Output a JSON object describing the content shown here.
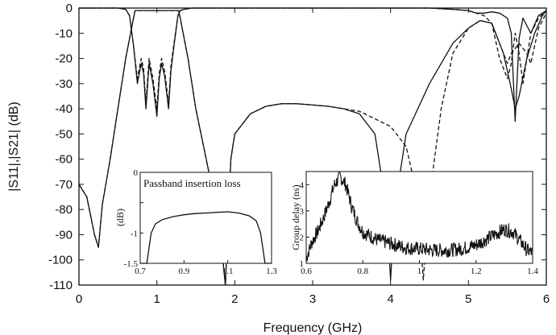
{
  "chart_data": [
    {
      "type": "line",
      "xlabel": "Frequency (GHz)",
      "ylabel": "|S11|,|S21| (dB)",
      "xlim": [
        0,
        6
      ],
      "ylim": [
        -110,
        0
      ],
      "xticks": [
        0,
        1,
        2,
        3,
        4,
        5,
        6
      ],
      "yticks": [
        0,
        -10,
        -20,
        -30,
        -40,
        -50,
        -60,
        -70,
        -80,
        -90,
        -100,
        -110
      ],
      "grid": false,
      "legend": "none",
      "series": [
        {
          "style": "solid",
          "x": [
            0,
            0.1,
            0.2,
            0.25,
            0.3,
            0.4,
            0.5,
            0.6,
            0.7,
            0.72,
            1.28,
            1.3,
            1.4,
            1.5,
            1.6,
            1.7,
            1.8,
            1.88,
            1.95,
            2.0,
            2.2,
            2.4,
            2.6,
            2.8,
            3.0,
            3.2,
            3.4,
            3.6,
            3.8,
            3.95,
            4.0,
            4.05,
            4.2,
            4.5,
            4.8,
            5.0,
            5.15,
            5.3,
            5.45,
            5.55,
            5.6,
            5.65,
            5.75,
            5.85,
            5.95,
            6.0
          ],
          "y": [
            -70,
            -75,
            -90,
            -95,
            -78,
            -60,
            -40,
            -20,
            -4,
            -1,
            -1,
            -4,
            -20,
            -40,
            -55,
            -70,
            -85,
            -110,
            -60,
            -50,
            -42,
            -39,
            -38,
            -38,
            -38.5,
            -39,
            -40,
            -42,
            -50,
            -80,
            -108,
            -80,
            -50,
            -30,
            -14,
            -8,
            -5,
            -6,
            -18,
            -32,
            -40,
            -35,
            -20,
            -10,
            -3,
            -1
          ]
        },
        {
          "style": "dashed",
          "x": [
            0,
            0.1,
            0.2,
            0.25,
            0.3,
            0.4,
            0.5,
            0.6,
            0.7,
            0.72,
            1.28,
            1.3,
            1.4,
            1.5,
            1.6,
            1.7,
            1.8,
            1.88,
            1.95,
            2.0,
            2.2,
            2.4,
            2.6,
            2.8,
            3.0,
            3.2,
            3.4,
            3.6,
            3.8,
            4.0,
            4.2,
            4.35,
            4.42,
            4.5,
            4.65,
            4.8,
            5.0,
            5.15,
            5.3,
            5.45,
            5.5,
            5.55,
            5.65,
            5.75,
            5.8,
            5.9,
            6.0
          ],
          "y": [
            -70,
            -75,
            -90,
            -95,
            -78,
            -60,
            -40,
            -20,
            -4,
            -1,
            -1,
            -4,
            -20,
            -40,
            -55,
            -70,
            -85,
            -110,
            -60,
            -50,
            -42,
            -39,
            -38,
            -38,
            -38.5,
            -39,
            -40,
            -41,
            -44,
            -47,
            -55,
            -75,
            -108,
            -75,
            -40,
            -18,
            -8,
            -5,
            -6,
            -18,
            -22,
            -18,
            -14,
            -18,
            -22,
            -8,
            -2
          ]
        },
        {
          "style": "solid",
          "x": [
            0,
            0.3,
            0.5,
            0.6,
            0.65,
            0.7,
            0.75,
            0.8,
            0.83,
            0.86,
            0.9,
            0.95,
            1.0,
            1.03,
            1.06,
            1.1,
            1.15,
            1.18,
            1.22,
            1.27,
            1.3,
            1.35,
            1.45,
            1.6,
            1.8,
            2.0,
            3.0,
            4.5,
            4.8,
            5.0,
            5.1,
            5.2,
            5.3,
            5.4,
            5.5,
            5.55,
            5.6,
            5.65,
            5.7,
            5.8,
            5.9,
            6.0
          ],
          "y": [
            0,
            0,
            0,
            -0.5,
            -3,
            -15,
            -30,
            -22,
            -26,
            -40,
            -22,
            -30,
            -43,
            -28,
            -22,
            -27,
            -40,
            -25,
            -15,
            -3,
            -1,
            -0.5,
            0,
            0,
            0,
            0,
            0,
            0,
            -0.5,
            -1,
            -2,
            -2,
            -1.5,
            -2,
            -4,
            -10,
            -45,
            -12,
            -4,
            -10,
            -3,
            -1
          ]
        },
        {
          "style": "dashed",
          "x": [
            0,
            0.3,
            0.5,
            0.6,
            0.65,
            0.7,
            0.75,
            0.8,
            0.83,
            0.86,
            0.9,
            0.95,
            1.0,
            1.03,
            1.06,
            1.1,
            1.15,
            1.18,
            1.22,
            1.27,
            1.3,
            1.35,
            1.45,
            1.6,
            1.8,
            2.0,
            3.0,
            4.5,
            4.8,
            5.0,
            5.1,
            5.2,
            5.3,
            5.4,
            5.5,
            5.55,
            5.6,
            5.65,
            5.7,
            5.8,
            5.9,
            6.0
          ],
          "y": [
            0,
            0,
            0,
            -0.5,
            -3,
            -15,
            -28,
            -20,
            -24,
            -38,
            -20,
            -28,
            -40,
            -26,
            -20,
            -25,
            -38,
            -23,
            -14,
            -3,
            -1,
            -0.5,
            0,
            0,
            0,
            0,
            0,
            0,
            -0.5,
            -1,
            -2,
            -3,
            -6,
            -20,
            -28,
            -22,
            -10,
            -18,
            -30,
            -10,
            -4,
            -1
          ]
        }
      ]
    },
    {
      "type": "line",
      "title": "Passband insertion loss",
      "xlabel": "",
      "ylabel": "(dB)",
      "xlim": [
        0.7,
        1.3
      ],
      "ylim": [
        -1.5,
        0
      ],
      "xticks": [
        "0.7",
        "0.9",
        "1.1",
        "1.3"
      ],
      "yticks": [
        "0",
        "-0.5",
        "-1",
        "-1.5"
      ],
      "ytick_labels_shown": [
        "0",
        "-1",
        "-1.5"
      ],
      "series": [
        {
          "x": [
            0.7,
            0.73,
            0.75,
            0.77,
            0.8,
            0.85,
            0.9,
            0.95,
            1.0,
            1.05,
            1.1,
            1.15,
            1.2,
            1.23,
            1.25,
            1.27,
            1.3
          ],
          "y": [
            -1.5,
            -1.5,
            -1.0,
            -0.85,
            -0.78,
            -0.73,
            -0.7,
            -0.68,
            -0.67,
            -0.66,
            -0.65,
            -0.67,
            -0.72,
            -0.8,
            -1.0,
            -1.5,
            -1.5
          ]
        }
      ]
    },
    {
      "type": "line",
      "title": "",
      "xlabel": "",
      "ylabel": "Group delay (ns)",
      "xlim": [
        0.6,
        1.4
      ],
      "ylim": [
        1,
        4.5
      ],
      "xticks": [
        "0.6",
        "0.8",
        "1",
        "1.2",
        "1.4"
      ],
      "yticks": [
        "1",
        "2",
        "3",
        "4"
      ],
      "series": [
        {
          "x": [
            0.6,
            0.62,
            0.64,
            0.66,
            0.68,
            0.7,
            0.72,
            0.74,
            0.76,
            0.78,
            0.8,
            0.85,
            0.9,
            0.95,
            1.0,
            1.05,
            1.1,
            1.15,
            1.2,
            1.25,
            1.3,
            1.33,
            1.36,
            1.38,
            1.4
          ],
          "y": [
            1.2,
            1.8,
            2.2,
            2.7,
            3.3,
            4.0,
            4.3,
            4.0,
            3.2,
            2.6,
            2.2,
            1.9,
            1.75,
            1.6,
            1.55,
            1.5,
            1.5,
            1.55,
            1.7,
            2.0,
            2.3,
            2.2,
            1.8,
            1.5,
            1.4
          ]
        }
      ]
    }
  ]
}
